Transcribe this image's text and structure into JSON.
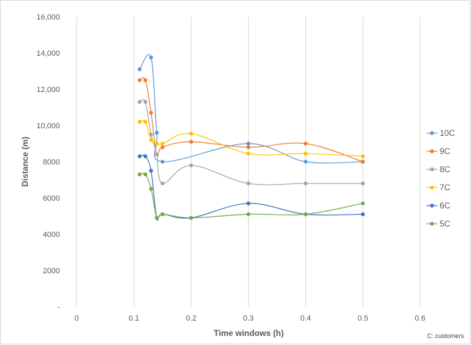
{
  "chart_data": {
    "type": "scatter",
    "smooth_lines": true,
    "title": "",
    "xlabel": "Time windows (h)",
    "ylabel": "Distance (m)",
    "xlim": [
      0,
      0.6
    ],
    "ylim": [
      0,
      16000
    ],
    "x_ticks": [
      "0",
      "0.1",
      "0.2",
      "0.3",
      "0.4",
      "0.5",
      "0.6"
    ],
    "y_ticks": [
      "-",
      "2000",
      "4000",
      "6000",
      "8000",
      "10,000",
      "12,000",
      "14,000",
      "16,000"
    ],
    "grid": "vertical",
    "legend_position": "right",
    "footnote": "C: customers",
    "series": [
      {
        "name": "10C",
        "color": "#5b9bd5",
        "x": [
          0.11,
          0.13,
          0.14,
          0.15,
          0.3,
          0.4,
          0.5
        ],
        "y": [
          13100,
          13750,
          9600,
          8000,
          9000,
          8000,
          8000
        ]
      },
      {
        "name": "9C",
        "color": "#ed7d31",
        "x": [
          0.11,
          0.12,
          0.13,
          0.14,
          0.15,
          0.2,
          0.3,
          0.4,
          0.5
        ],
        "y": [
          12500,
          12500,
          10700,
          8400,
          8800,
          9100,
          8800,
          9000,
          8000
        ]
      },
      {
        "name": "8C",
        "color": "#a5a5a5",
        "x": [
          0.11,
          0.12,
          0.13,
          0.14,
          0.15,
          0.2,
          0.3,
          0.4,
          0.5
        ],
        "y": [
          11300,
          11300,
          9500,
          8400,
          6800,
          7800,
          6800,
          6800,
          6800
        ]
      },
      {
        "name": "7C",
        "color": "#ffc000",
        "x": [
          0.11,
          0.12,
          0.13,
          0.14,
          0.15,
          0.2,
          0.3,
          0.4,
          0.5
        ],
        "y": [
          10200,
          10200,
          9200,
          9000,
          9000,
          9550,
          8450,
          8450,
          8300
        ]
      },
      {
        "name": "6C",
        "color": "#4472c4",
        "x": [
          0.11,
          0.12,
          0.13,
          0.14,
          0.15,
          0.2,
          0.3,
          0.4,
          0.5
        ],
        "y": [
          8300,
          8300,
          7500,
          4900,
          5100,
          4900,
          5700,
          5100,
          5100
        ]
      },
      {
        "name": "5C",
        "color": "#70ad47",
        "x": [
          0.11,
          0.12,
          0.13,
          0.14,
          0.15,
          0.2,
          0.3,
          0.4,
          0.5
        ],
        "y": [
          7300,
          7300,
          6500,
          4900,
          5100,
          4900,
          5100,
          5100,
          5700
        ]
      }
    ]
  }
}
